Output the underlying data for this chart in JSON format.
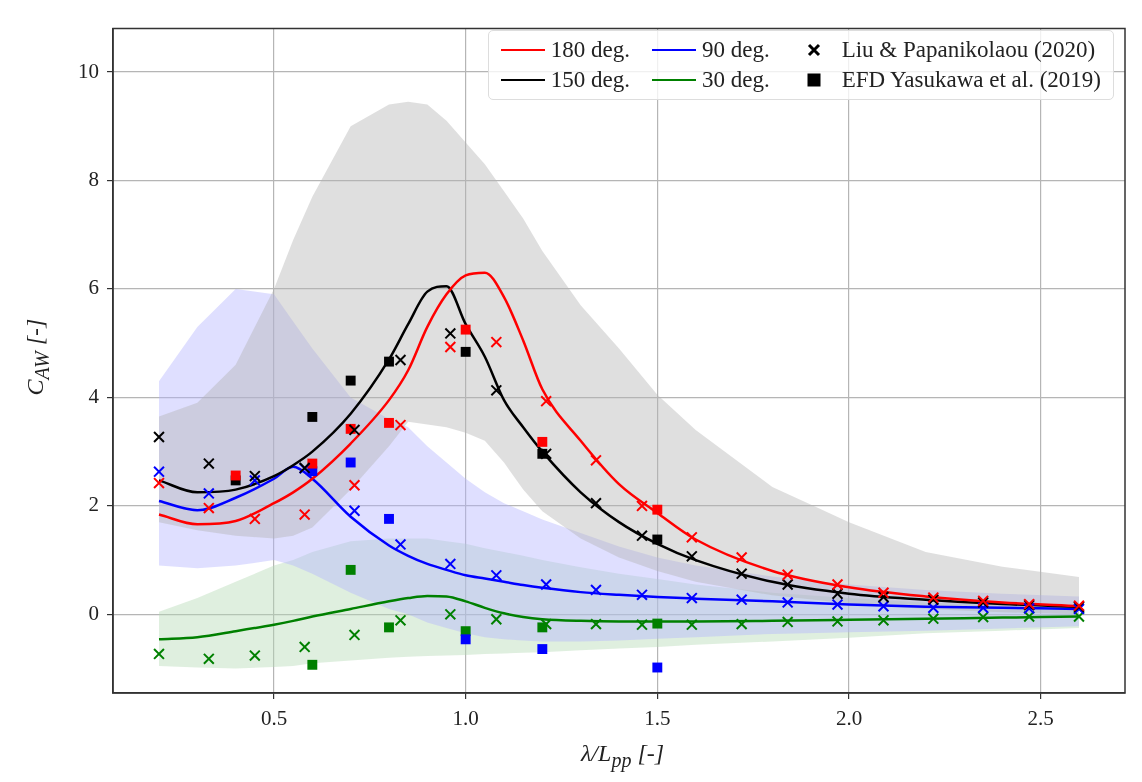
{
  "chart_data": {
    "type": "line",
    "xlabel": "λ/L$_{pp}$ [-]",
    "ylabel": "C$_{AW}$ [-]",
    "xlim": [
      0.08,
      2.72
    ],
    "ylim": [
      -1.45,
      10.8
    ],
    "xticks": [
      0.5,
      {
        "value": 1,
        "label": "1.0"
      },
      1.5,
      {
        "value": 2,
        "label": "2.0"
      },
      2.5
    ],
    "yticks": [
      0,
      2,
      4,
      6,
      8,
      10
    ],
    "grid": true,
    "legend": "top right",
    "line_style": "solid",
    "series": [
      {
        "name": "180 deg.",
        "type": "line",
        "color": "#ff0000",
        "marker": "none",
        "x": [
          0.2,
          0.3,
          0.4,
          0.5,
          0.55,
          0.6,
          0.7,
          0.8,
          0.85,
          0.9,
          0.95,
          1.0,
          1.05,
          1.1,
          1.15,
          1.2,
          1.3,
          1.4,
          1.5,
          1.6,
          1.8,
          2.0,
          2.2,
          2.4,
          2.6
        ],
        "values": [
          1.84,
          1.66,
          1.72,
          2.05,
          2.25,
          2.5,
          3.15,
          3.95,
          4.5,
          5.3,
          5.9,
          6.25,
          6.3,
          5.85,
          5.05,
          4.15,
          3.2,
          2.4,
          1.87,
          1.38,
          0.8,
          0.5,
          0.33,
          0.22,
          0.15
        ]
      },
      {
        "name": "150 deg.",
        "type": "line",
        "color": "#000000",
        "marker": "none",
        "x": [
          0.2,
          0.3,
          0.4,
          0.5,
          0.55,
          0.6,
          0.7,
          0.8,
          0.85,
          0.9,
          0.95,
          1.0,
          1.05,
          1.1,
          1.15,
          1.2,
          1.3,
          1.4,
          1.5,
          1.6,
          1.8,
          2.0,
          2.2,
          2.4,
          2.6
        ],
        "values": [
          2.47,
          2.25,
          2.3,
          2.55,
          2.75,
          3.0,
          3.7,
          4.7,
          5.35,
          5.95,
          6.05,
          5.35,
          4.75,
          3.95,
          3.45,
          3.0,
          2.25,
          1.7,
          1.3,
          1.0,
          0.6,
          0.38,
          0.27,
          0.19,
          0.14
        ],
        "lower": [
          1.7,
          1.55,
          1.45,
          1.4,
          1.45,
          1.6,
          2.3,
          3.1,
          3.55,
          3.5,
          3.45,
          3.35,
          3.2,
          2.8,
          2.3,
          1.9,
          1.4,
          1.05,
          0.8,
          0.6,
          0.35,
          0.2,
          0.1,
          0.04,
          0.0
        ],
        "upper": [
          3.65,
          3.9,
          4.6,
          6.0,
          6.9,
          7.7,
          9.0,
          9.4,
          9.45,
          9.4,
          9.1,
          8.7,
          8.3,
          7.8,
          7.3,
          6.7,
          5.7,
          4.9,
          4.05,
          3.4,
          2.35,
          1.7,
          1.15,
          0.88,
          0.69
        ]
      },
      {
        "name": "90 deg.",
        "type": "line",
        "color": "#0000ff",
        "marker": "none",
        "x": [
          0.2,
          0.3,
          0.4,
          0.5,
          0.55,
          0.6,
          0.7,
          0.8,
          0.85,
          0.9,
          0.95,
          1.0,
          1.05,
          1.1,
          1.15,
          1.2,
          1.3,
          1.4,
          1.5,
          1.6,
          1.8,
          2.0,
          2.2,
          2.4,
          2.6
        ],
        "values": [
          2.09,
          1.92,
          2.15,
          2.5,
          2.72,
          2.5,
          1.8,
          1.27,
          1.08,
          0.93,
          0.82,
          0.72,
          0.66,
          0.6,
          0.54,
          0.49,
          0.41,
          0.36,
          0.32,
          0.29,
          0.24,
          0.18,
          0.14,
          0.12,
          0.1
        ],
        "lower": [
          0.9,
          0.85,
          0.9,
          1.0,
          0.9,
          0.75,
          0.4,
          0.1,
          0.0,
          -0.15,
          -0.25,
          -0.35,
          -0.42,
          -0.46,
          -0.48,
          -0.5,
          -0.5,
          -0.48,
          -0.45,
          -0.42,
          -0.36,
          -0.33,
          -0.3,
          -0.26,
          -0.22
        ],
        "upper": [
          4.3,
          5.3,
          6.0,
          5.9,
          5.4,
          4.9,
          4.0,
          3.6,
          3.45,
          3.1,
          2.8,
          2.5,
          2.25,
          2.05,
          1.9,
          1.75,
          1.5,
          1.25,
          1.05,
          0.9,
          0.7,
          0.55,
          0.45,
          0.38,
          0.33
        ]
      },
      {
        "name": "30 deg.",
        "type": "line",
        "color": "#008000",
        "marker": "none",
        "x": [
          0.2,
          0.3,
          0.4,
          0.5,
          0.55,
          0.6,
          0.7,
          0.8,
          0.85,
          0.9,
          0.95,
          1.0,
          1.05,
          1.1,
          1.15,
          1.2,
          1.3,
          1.4,
          1.5,
          1.6,
          1.8,
          2.0,
          2.2,
          2.4,
          2.6
        ],
        "values": [
          -0.46,
          -0.42,
          -0.31,
          -0.19,
          -0.12,
          -0.04,
          0.1,
          0.24,
          0.3,
          0.34,
          0.33,
          0.24,
          0.12,
          0.02,
          -0.05,
          -0.09,
          -0.12,
          -0.13,
          -0.13,
          -0.13,
          -0.12,
          -0.1,
          -0.08,
          -0.06,
          -0.04
        ],
        "lower": [
          -0.95,
          -0.98,
          -1.0,
          -0.97,
          -0.95,
          -0.9,
          -0.85,
          -0.8,
          -0.78,
          -0.77,
          -0.76,
          -0.75,
          -0.73,
          -0.72,
          -0.71,
          -0.7,
          -0.66,
          -0.63,
          -0.6,
          -0.56,
          -0.5,
          -0.43,
          -0.35,
          -0.3,
          -0.25
        ],
        "upper": [
          0.05,
          0.3,
          0.6,
          0.9,
          1.0,
          1.15,
          1.35,
          1.4,
          1.4,
          1.4,
          1.35,
          1.3,
          1.22,
          1.15,
          1.08,
          1.0,
          0.87,
          0.75,
          0.65,
          0.55,
          0.4,
          0.3,
          0.22,
          0.17,
          0.12
        ]
      },
      {
        "type": "scatter",
        "color": "#ff0000",
        "marker": "cross",
        "x": [
          0.2,
          0.33,
          0.45,
          0.58,
          0.71,
          0.83,
          0.96,
          1.08,
          1.21,
          1.34,
          1.46,
          1.59,
          1.72,
          1.84,
          1.97,
          2.09,
          2.22,
          2.35,
          2.47,
          2.6
        ],
        "values": [
          2.42,
          1.96,
          1.76,
          1.84,
          2.38,
          3.49,
          4.93,
          5.02,
          3.93,
          2.84,
          2.0,
          1.42,
          1.05,
          0.73,
          0.55,
          0.4,
          0.31,
          0.25,
          0.19,
          0.16
        ]
      },
      {
        "name": "Liu & Papanikolaou (2020)",
        "type": "scatter",
        "color": "#000000",
        "marker": "cross",
        "x": [
          0.2,
          0.33,
          0.45,
          0.58,
          0.71,
          0.83,
          0.96,
          1.08,
          1.21,
          1.34,
          1.46,
          1.59,
          1.72,
          1.84,
          1.97,
          2.09,
          2.22,
          2.35,
          2.47,
          2.6
        ],
        "values": [
          3.27,
          2.78,
          2.55,
          2.7,
          3.4,
          4.69,
          5.18,
          4.13,
          2.96,
          2.05,
          1.45,
          1.07,
          0.75,
          0.55,
          0.38,
          0.32,
          0.27,
          0.22,
          0.17,
          0.14
        ]
      },
      {
        "type": "scatter",
        "color": "#0000ff",
        "marker": "cross",
        "x": [
          0.2,
          0.33,
          0.45,
          0.58,
          0.71,
          0.83,
          0.96,
          1.08,
          1.21,
          1.34,
          1.46,
          1.59,
          1.72,
          1.84,
          1.97,
          2.09,
          2.22,
          2.35,
          2.47,
          2.6
        ],
        "values": [
          2.63,
          2.23,
          2.47,
          2.69,
          1.91,
          1.29,
          0.93,
          0.72,
          0.55,
          0.45,
          0.36,
          0.3,
          0.27,
          0.22,
          0.18,
          0.15,
          0.12,
          0.12,
          0.11,
          0.1
        ]
      },
      {
        "type": "scatter",
        "color": "#008000",
        "marker": "cross",
        "x": [
          0.2,
          0.33,
          0.45,
          0.58,
          0.71,
          0.83,
          0.96,
          1.08,
          1.21,
          1.34,
          1.46,
          1.59,
          1.72,
          1.84,
          1.97,
          2.09,
          2.22,
          2.35,
          2.47,
          2.6
        ],
        "values": [
          -0.73,
          -0.82,
          -0.76,
          -0.6,
          -0.38,
          -0.11,
          0.0,
          -0.09,
          -0.18,
          -0.18,
          -0.19,
          -0.19,
          -0.18,
          -0.14,
          -0.13,
          -0.11,
          -0.08,
          -0.05,
          -0.04,
          -0.04
        ]
      },
      {
        "type": "scatter",
        "color": "#ff0000",
        "marker": "square",
        "x": [
          0.4,
          0.6,
          0.7,
          0.8,
          1.0,
          1.2,
          1.5
        ],
        "values": [
          2.56,
          2.78,
          3.42,
          3.53,
          5.25,
          3.18,
          1.93
        ]
      },
      {
        "name": "EFD Yasukawa et al. (2019)",
        "type": "scatter",
        "color": "#000000",
        "marker": "square",
        "x": [
          0.4,
          0.6,
          0.7,
          0.8,
          1.0,
          1.2,
          1.5
        ],
        "values": [
          2.47,
          3.64,
          4.31,
          4.66,
          4.84,
          2.96,
          1.38
        ]
      },
      {
        "type": "scatter",
        "color": "#0000ff",
        "marker": "square",
        "x": [
          0.6,
          0.7,
          0.8,
          1.0,
          1.2,
          1.5
        ],
        "values": [
          2.64,
          2.8,
          1.76,
          -0.46,
          -0.64,
          -0.98
        ]
      },
      {
        "type": "scatter",
        "color": "#008000",
        "marker": "square",
        "x": [
          0.6,
          0.7,
          0.8,
          1.0,
          1.2,
          1.5
        ],
        "values": [
          -0.93,
          0.82,
          -0.24,
          -0.31,
          -0.24,
          -0.17
        ]
      }
    ]
  }
}
